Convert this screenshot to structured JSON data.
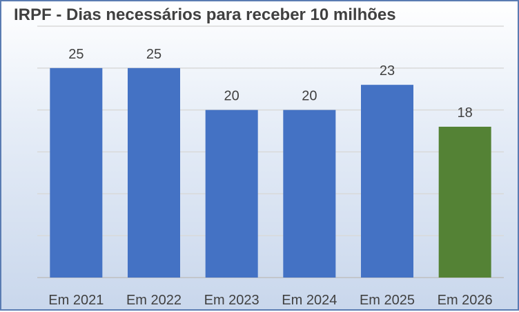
{
  "chart_data": {
    "type": "bar",
    "title": "IRPF - Dias necessários para receber 10 milhões",
    "categories": [
      "Em 2021",
      "Em 2022",
      "Em 2023",
      "Em 2024",
      "Em 2025",
      "Em 2026"
    ],
    "values": [
      25,
      25,
      20,
      20,
      23,
      18
    ],
    "data_labels": [
      "25",
      "25",
      "20",
      "20",
      "23",
      "18"
    ],
    "ylim": [
      0,
      30
    ],
    "y_gridline_step": 5,
    "y_tick_labels_shown": false,
    "grid": true,
    "legend": "none",
    "colors": {
      "bar": "#4472c4",
      "highlight_bar": "#548235",
      "text": "#404040",
      "gridline": "#d9d9d9"
    },
    "highlight_index": 5
  }
}
